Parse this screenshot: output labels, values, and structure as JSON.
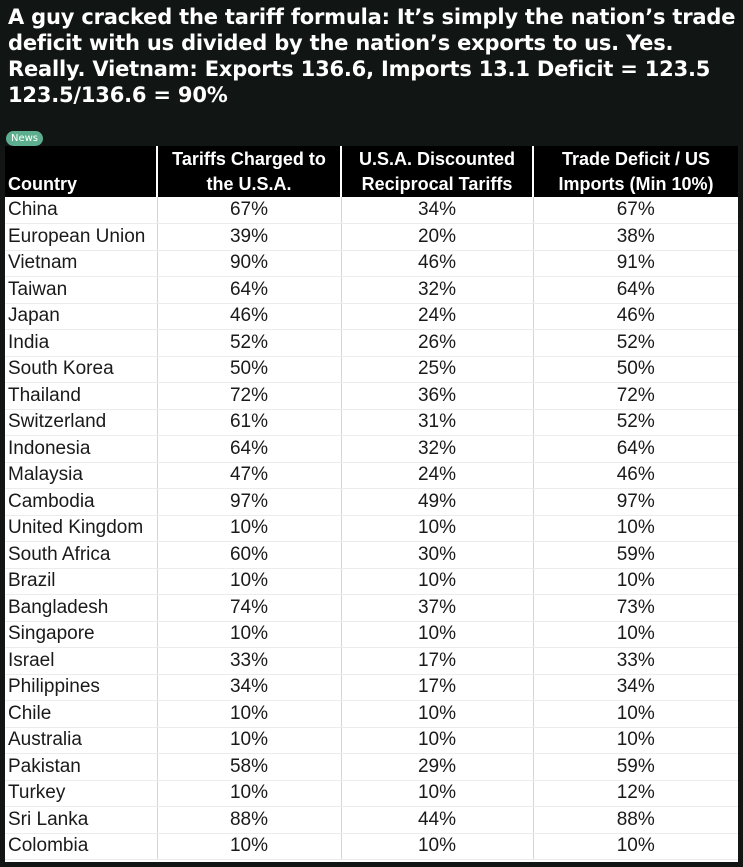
{
  "post": {
    "title": "A guy cracked the tariff formula: It’s simply the nation’s trade deficit with us divided by the nation’s exports to us. Yes. Really. Vietnam: Exports 136.6, Imports 13.1 Deficit = 123.5 123.5/136.6 = 90%",
    "badge": "News"
  },
  "table": {
    "headers": {
      "country": "Country",
      "tariffs_charged": "Tariffs Charged to the U.S.A.",
      "discounted": "U.S.A. Discounted Reciprocal Tariffs",
      "trade_deficit": "Trade Deficit / US Imports (Min 10%)"
    },
    "rows": [
      {
        "country": "China",
        "tariffs_charged": "67%",
        "discounted": "34%",
        "trade_deficit": "67%"
      },
      {
        "country": "European Union",
        "tariffs_charged": "39%",
        "discounted": "20%",
        "trade_deficit": "38%"
      },
      {
        "country": "Vietnam",
        "tariffs_charged": "90%",
        "discounted": "46%",
        "trade_deficit": "91%"
      },
      {
        "country": "Taiwan",
        "tariffs_charged": "64%",
        "discounted": "32%",
        "trade_deficit": "64%"
      },
      {
        "country": "Japan",
        "tariffs_charged": "46%",
        "discounted": "24%",
        "trade_deficit": "46%"
      },
      {
        "country": "India",
        "tariffs_charged": "52%",
        "discounted": "26%",
        "trade_deficit": "52%"
      },
      {
        "country": "South Korea",
        "tariffs_charged": "50%",
        "discounted": "25%",
        "trade_deficit": "50%"
      },
      {
        "country": "Thailand",
        "tariffs_charged": "72%",
        "discounted": "36%",
        "trade_deficit": "72%"
      },
      {
        "country": "Switzerland",
        "tariffs_charged": "61%",
        "discounted": "31%",
        "trade_deficit": "52%"
      },
      {
        "country": "Indonesia",
        "tariffs_charged": "64%",
        "discounted": "32%",
        "trade_deficit": "64%"
      },
      {
        "country": "Malaysia",
        "tariffs_charged": "47%",
        "discounted": "24%",
        "trade_deficit": "46%"
      },
      {
        "country": "Cambodia",
        "tariffs_charged": "97%",
        "discounted": "49%",
        "trade_deficit": "97%"
      },
      {
        "country": "United Kingdom",
        "tariffs_charged": "10%",
        "discounted": "10%",
        "trade_deficit": "10%"
      },
      {
        "country": "South Africa",
        "tariffs_charged": "60%",
        "discounted": "30%",
        "trade_deficit": "59%"
      },
      {
        "country": "Brazil",
        "tariffs_charged": "10%",
        "discounted": "10%",
        "trade_deficit": "10%"
      },
      {
        "country": "Bangladesh",
        "tariffs_charged": "74%",
        "discounted": "37%",
        "trade_deficit": "73%"
      },
      {
        "country": "Singapore",
        "tariffs_charged": "10%",
        "discounted": "10%",
        "trade_deficit": "10%"
      },
      {
        "country": "Israel",
        "tariffs_charged": "33%",
        "discounted": "17%",
        "trade_deficit": "33%"
      },
      {
        "country": "Philippines",
        "tariffs_charged": "34%",
        "discounted": "17%",
        "trade_deficit": "34%"
      },
      {
        "country": "Chile",
        "tariffs_charged": "10%",
        "discounted": "10%",
        "trade_deficit": "10%"
      },
      {
        "country": "Australia",
        "tariffs_charged": "10%",
        "discounted": "10%",
        "trade_deficit": "10%"
      },
      {
        "country": "Pakistan",
        "tariffs_charged": "58%",
        "discounted": "29%",
        "trade_deficit": "59%"
      },
      {
        "country": "Turkey",
        "tariffs_charged": "10%",
        "discounted": "10%",
        "trade_deficit": "12%"
      },
      {
        "country": "Sri Lanka",
        "tariffs_charged": "88%",
        "discounted": "44%",
        "trade_deficit": "88%"
      },
      {
        "country": "Colombia",
        "tariffs_charged": "10%",
        "discounted": "10%",
        "trade_deficit": "10%"
      }
    ]
  },
  "colors": {
    "background": "#111614",
    "badge": "#5cae8e",
    "header_bg": "#000000",
    "table_bg": "#ffffff"
  }
}
